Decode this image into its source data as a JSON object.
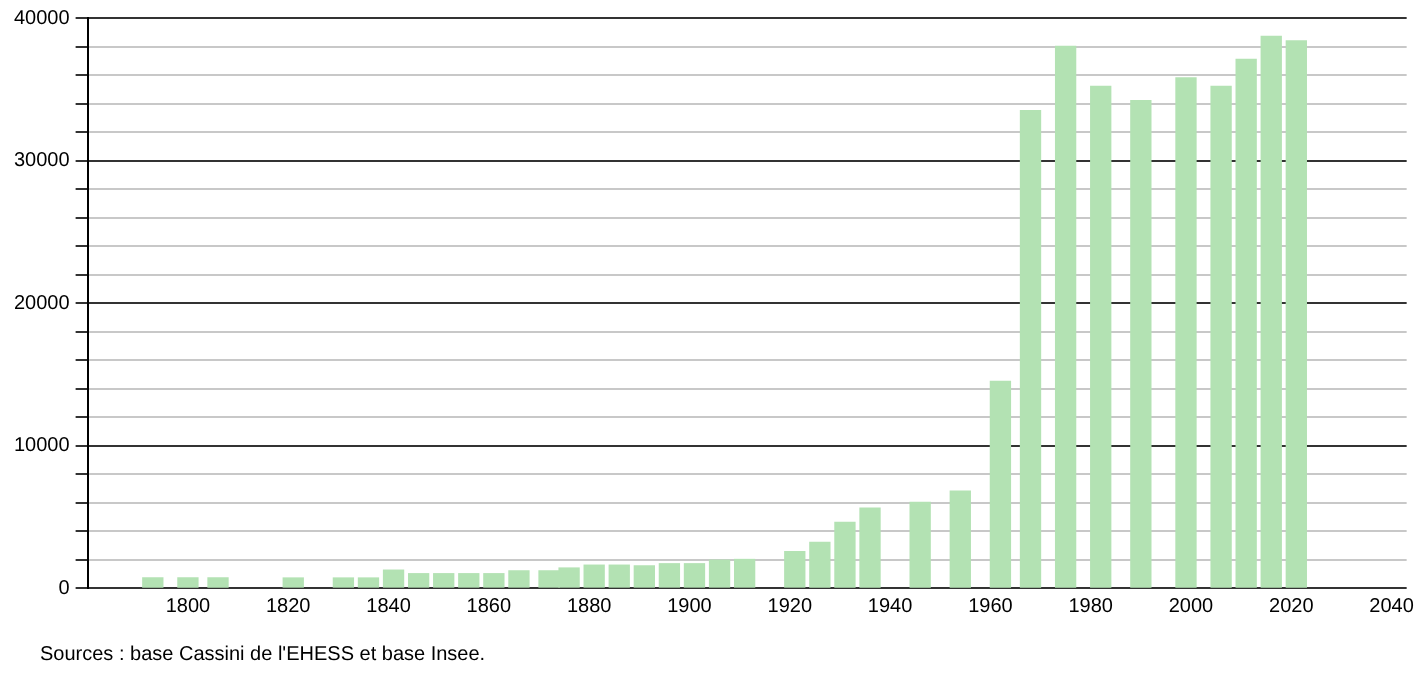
{
  "chart_data": {
    "type": "bar",
    "x": [
      1793,
      1800,
      1806,
      1821,
      1831,
      1836,
      1841,
      1846,
      1851,
      1856,
      1861,
      1866,
      1872,
      1876,
      1881,
      1886,
      1891,
      1896,
      1901,
      1906,
      1911,
      1921,
      1926,
      1931,
      1936,
      1946,
      1954,
      1962,
      1968,
      1975,
      1982,
      1990,
      1999,
      2006,
      2011,
      2016,
      2021
    ],
    "values": [
      700,
      700,
      700,
      700,
      700,
      700,
      1250,
      1000,
      1000,
      1000,
      1000,
      1200,
      1200,
      1400,
      1600,
      1600,
      1550,
      1700,
      1700,
      1950,
      2000,
      2550,
      3200,
      4600,
      5600,
      6000,
      6800,
      14500,
      33500,
      38000,
      35200,
      34200,
      35800,
      35200,
      37100,
      38700,
      38400
    ],
    "color": "#b3e2b3",
    "xlim": [
      1780,
      2043
    ],
    "xticks": [
      1800,
      1820,
      1840,
      1860,
      1880,
      1900,
      1920,
      1940,
      1960,
      1980,
      2000,
      2020,
      2040
    ],
    "ylim": [
      0,
      40000
    ],
    "yticks": [
      0,
      {
        "value": 2000,
        "label": null
      },
      {
        "value": 4000,
        "label": null
      },
      {
        "value": 6000,
        "label": null
      },
      {
        "value": 8000,
        "label": null
      },
      10000,
      {
        "value": 12000,
        "label": null
      },
      {
        "value": 14000,
        "label": null
      },
      {
        "value": 16000,
        "label": null
      },
      {
        "value": 18000,
        "label": null
      },
      20000,
      {
        "value": 22000,
        "label": null
      },
      {
        "value": 24000,
        "label": null
      },
      {
        "value": 26000,
        "label": null
      },
      {
        "value": 28000,
        "label": null
      },
      30000,
      {
        "value": 32000,
        "label": null
      },
      {
        "value": 34000,
        "label": null
      },
      {
        "value": 36000,
        "label": null
      },
      {
        "value": 38000,
        "label": null
      },
      40000
    ],
    "grid": "y",
    "legend": false,
    "annotations": [
      "Sources : base Cassini de l'EHESS et base Insee."
    ]
  }
}
